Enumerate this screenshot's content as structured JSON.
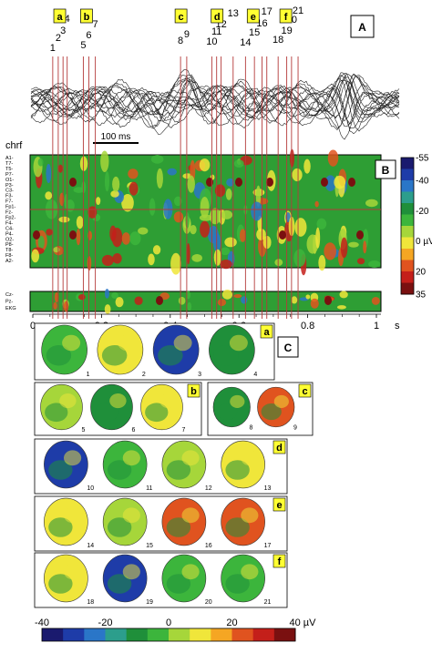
{
  "panels": {
    "A": {
      "label": "A",
      "scale_bar_label": "100 ms",
      "markers": [
        {
          "n": "1",
          "t": 0.058
        },
        {
          "n": "2",
          "t": 0.074
        },
        {
          "n": "3",
          "t": 0.088
        },
        {
          "n": "4",
          "t": 0.1
        },
        {
          "n": "5",
          "t": 0.147
        },
        {
          "n": "6",
          "t": 0.163
        },
        {
          "n": "7",
          "t": 0.182
        },
        {
          "n": "8",
          "t": 0.43
        },
        {
          "n": "9",
          "t": 0.448
        },
        {
          "n": "10",
          "t": 0.521
        },
        {
          "n": "11",
          "t": 0.535
        },
        {
          "n": "12",
          "t": 0.548
        },
        {
          "n": "13",
          "t": 0.583
        },
        {
          "n": "14",
          "t": 0.619
        },
        {
          "n": "15",
          "t": 0.645
        },
        {
          "n": "16",
          "t": 0.667
        },
        {
          "n": "17",
          "t": 0.681
        },
        {
          "n": "18",
          "t": 0.714
        },
        {
          "n": "19",
          "t": 0.739
        },
        {
          "n": "20",
          "t": 0.753
        },
        {
          "n": "21",
          "t": 0.772
        }
      ],
      "group_tags": [
        {
          "tag": "a",
          "t": 0.077
        },
        {
          "tag": "b",
          "t": 0.155
        },
        {
          "tag": "c",
          "t": 0.43
        },
        {
          "tag": "d",
          "t": 0.535
        },
        {
          "tag": "e",
          "t": 0.64
        },
        {
          "tag": "f",
          "t": 0.735
        }
      ]
    },
    "B": {
      "label": "B",
      "channel_header": "chrf",
      "channels_top": [
        "A1-",
        "T7-",
        "T5-",
        "P7-",
        "O1-",
        "P3-",
        "C3-",
        "F3-",
        "F7-",
        "Fp1-",
        "Fz-",
        "Fp2-",
        "F4-",
        "C4-",
        "P4-",
        "O2-",
        "P8-",
        "T8-",
        "F8-",
        "A2-"
      ],
      "channels_bottom": [
        "Cz-",
        "Pz-",
        "EKG"
      ],
      "colorbar_ticks": [
        "-55",
        "-40",
        "-20",
        "0 µV",
        "20",
        "35"
      ],
      "time_axis": {
        "ticks": [
          "0",
          "0.2",
          "0.4",
          "0.6",
          "0.8",
          "1"
        ],
        "unit": "s",
        "xlim": [
          0,
          1
        ]
      }
    },
    "C": {
      "label": "C",
      "groups": [
        {
          "tag": "a",
          "maps": [
            "1",
            "2",
            "3",
            "4"
          ]
        },
        {
          "tag": "b",
          "maps": [
            "5",
            "6",
            "7"
          ]
        },
        {
          "tag": "c",
          "maps": [
            "8",
            "9"
          ]
        },
        {
          "tag": "d",
          "maps": [
            "10",
            "11",
            "12",
            "13"
          ]
        },
        {
          "tag": "e",
          "maps": [
            "14",
            "15",
            "16",
            "17"
          ]
        },
        {
          "tag": "f",
          "maps": [
            "18",
            "19",
            "20",
            "21"
          ]
        }
      ],
      "colorbar_ticks": [
        "-40",
        "-20",
        "0",
        "20",
        "40 µV"
      ]
    }
  },
  "colors": {
    "marker_line": "#b43a3a",
    "tag_fill": "#ffff33",
    "scale": [
      "#1a1a6e",
      "#1e3ca8",
      "#2a76c8",
      "#2c9e8c",
      "#1f8f3a",
      "#3cb53c",
      "#a6d63a",
      "#f0e63a",
      "#f5a623",
      "#e0531f",
      "#c41f1a",
      "#7a1010"
    ]
  }
}
